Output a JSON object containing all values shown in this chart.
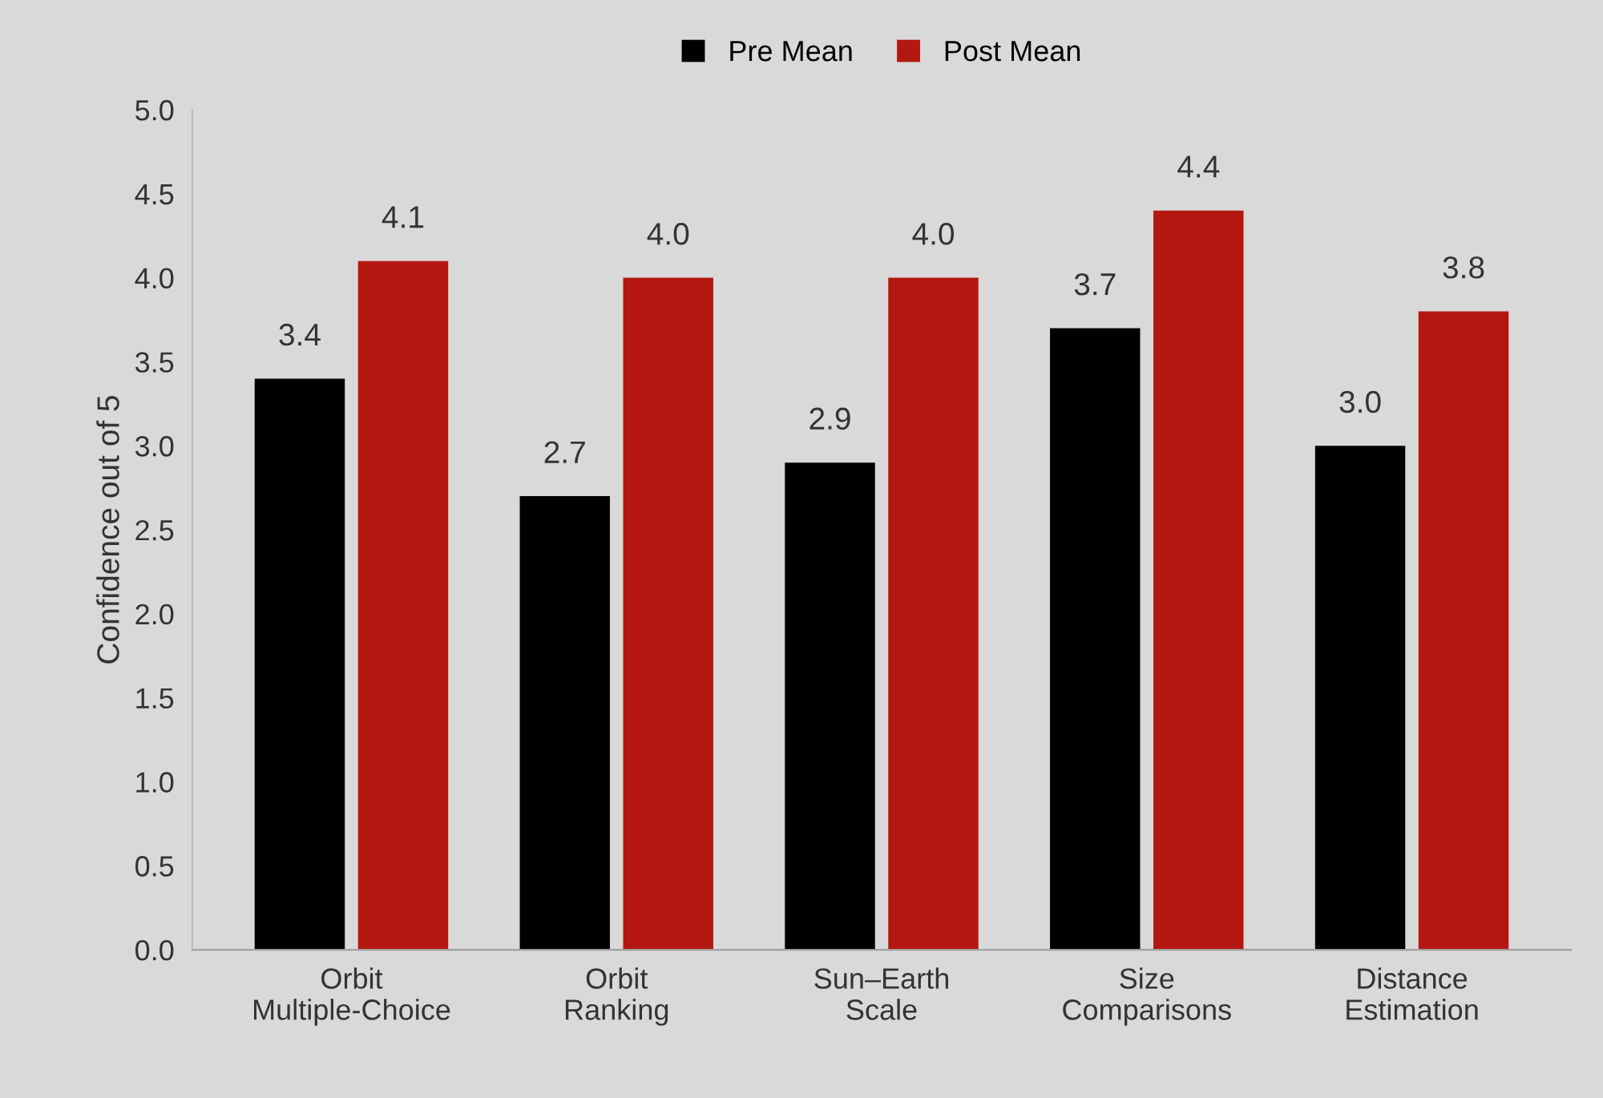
{
  "chart_data": {
    "type": "bar",
    "ylabel": "Confidence out of 5",
    "categories": [
      "Orbit\nMultiple-Choice",
      "Orbit\nRanking",
      "Sun–Earth\nScale",
      "Size\nComparisons",
      "Distance\nEstimation"
    ],
    "series": [
      {
        "name": "Pre Mean",
        "color": "#000000",
        "values": [
          3.4,
          2.7,
          2.9,
          3.7,
          3.0
        ],
        "value_labels": [
          "3.4",
          "2.7",
          "2.9",
          "3.7",
          "3.0"
        ]
      },
      {
        "name": "Post Mean",
        "color": "#b3170f",
        "values": [
          4.1,
          4.0,
          4.0,
          4.4,
          3.8
        ],
        "value_labels": [
          "4.1",
          "4.0",
          "4.0",
          "4.4",
          "3.8"
        ]
      }
    ],
    "ylim": [
      0,
      5
    ],
    "yticks": [
      {
        "value": 0,
        "label": "0.0"
      },
      0.5,
      {
        "value": 1,
        "label": "1.0"
      },
      1.5,
      {
        "value": 2,
        "label": "2.0"
      },
      2.5,
      {
        "value": 3,
        "label": "3.0"
      },
      3.5,
      {
        "value": 4,
        "label": "4.0"
      },
      4.5,
      {
        "value": 5,
        "label": "5.0"
      }
    ],
    "legend": "top",
    "grid": false
  }
}
